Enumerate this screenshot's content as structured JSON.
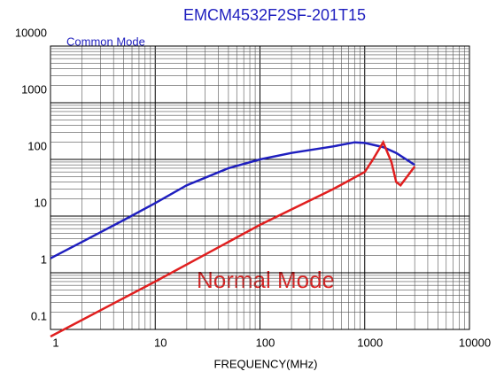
{
  "chart_data": {
    "type": "line",
    "title": "EMCM4532F2SF-201T15",
    "x_label": "FREQUENCY(MHz)",
    "xscale": "log",
    "yscale": "log",
    "grid": true,
    "xlim": [
      1,
      10000
    ],
    "ylim": [
      0.1,
      10000
    ],
    "xticks": [
      1,
      10,
      100,
      1000,
      10000
    ],
    "yticks": [
      0.1,
      1,
      10,
      100,
      1000,
      10000
    ],
    "series": [
      {
        "name": "Common Mode",
        "color": "#1f1fbf",
        "x": [
          1,
          2,
          5,
          10,
          20,
          50,
          100,
          200,
          500,
          800,
          1000,
          1500,
          2000,
          3000
        ],
        "values": [
          1.8,
          3.5,
          8.5,
          17,
          35,
          70,
          100,
          130,
          170,
          200,
          195,
          165,
          130,
          80
        ]
      },
      {
        "name": "Normal Mode",
        "color": "#e01f1f",
        "x": [
          1,
          10,
          100,
          500,
          1000,
          1200,
          1500,
          1800,
          2000,
          2200,
          3000
        ],
        "values": [
          0.075,
          0.7,
          7,
          30,
          60,
          100,
          200,
          90,
          40,
          35,
          75
        ]
      }
    ]
  }
}
